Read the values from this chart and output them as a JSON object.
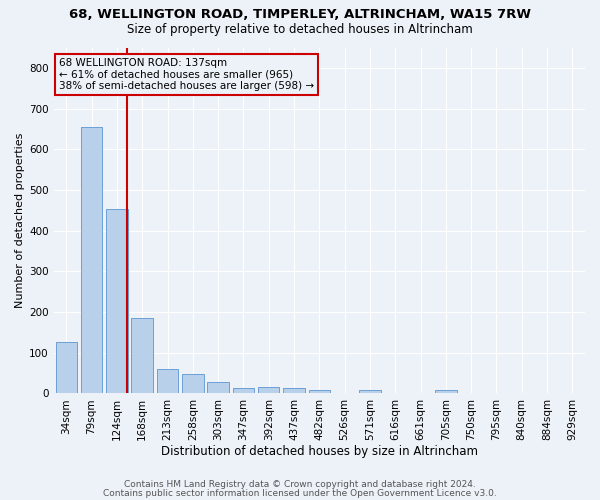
{
  "title1": "68, WELLINGTON ROAD, TIMPERLEY, ALTRINCHAM, WA15 7RW",
  "title2": "Size of property relative to detached houses in Altrincham",
  "xlabel": "Distribution of detached houses by size in Altrincham",
  "ylabel": "Number of detached properties",
  "bin_labels": [
    "34sqm",
    "79sqm",
    "124sqm",
    "168sqm",
    "213sqm",
    "258sqm",
    "303sqm",
    "347sqm",
    "392sqm",
    "437sqm",
    "482sqm",
    "526sqm",
    "571sqm",
    "616sqm",
    "661sqm",
    "705sqm",
    "750sqm",
    "795sqm",
    "840sqm",
    "884sqm",
    "929sqm"
  ],
  "bar_values": [
    127,
    655,
    452,
    184,
    60,
    47,
    28,
    12,
    15,
    14,
    9,
    0,
    9,
    0,
    0,
    8,
    0,
    0,
    0,
    0,
    0
  ],
  "bar_color": "#b8d0ea",
  "bar_edge_color": "#6a9fd8",
  "background_color": "#edf2f9",
  "grid_color": "#ffffff",
  "vline_color": "#cc0000",
  "annotation_text": "68 WELLINGTON ROAD: 137sqm\n← 61% of detached houses are smaller (965)\n38% of semi-detached houses are larger (598) →",
  "annotation_box_edge": "#cc0000",
  "footnote1": "Contains HM Land Registry data © Crown copyright and database right 2024.",
  "footnote2": "Contains public sector information licensed under the Open Government Licence v3.0.",
  "ylim": [
    0,
    850
  ],
  "yticks": [
    0,
    100,
    200,
    300,
    400,
    500,
    600,
    700,
    800
  ],
  "title1_fontsize": 9.5,
  "title2_fontsize": 8.5,
  "xlabel_fontsize": 8.5,
  "ylabel_fontsize": 8,
  "tick_fontsize": 7.5,
  "annotation_fontsize": 7.5,
  "footnote_fontsize": 6.5
}
